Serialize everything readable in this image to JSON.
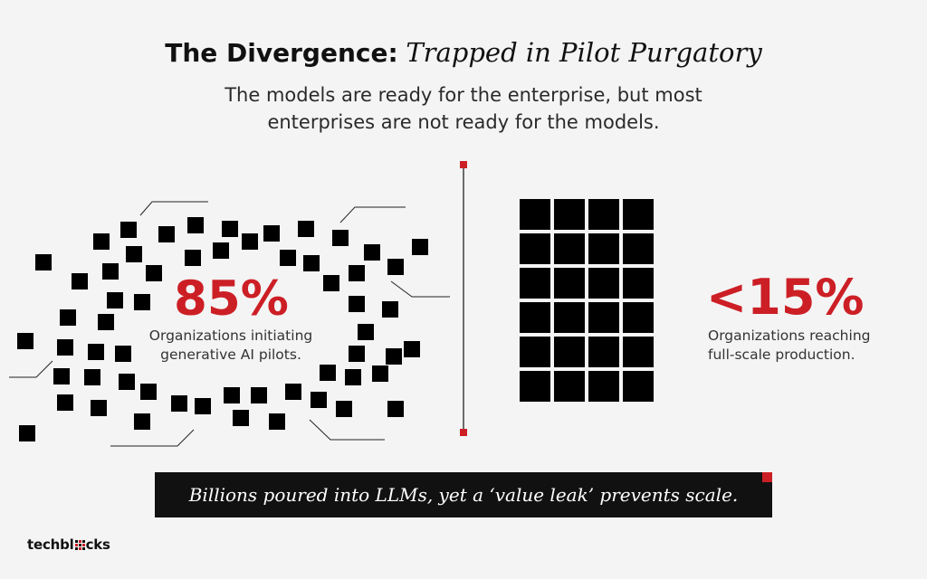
{
  "title": {
    "bold": "The Divergence:",
    "italic": "Trapped in Pilot Purgatory"
  },
  "subtitle": "The models are ready for the enterprise, but most enterprises are not ready for the models.",
  "left_stat": {
    "value": "85%",
    "caption_line1": "Organizations initiating",
    "caption_line2": "generative AI pilots."
  },
  "right_stat": {
    "value": "<15%",
    "caption_line1": "Organizations reaching",
    "caption_line2": "full-scale production."
  },
  "banner": "Billions poured into LLMs, yet a ‘value leak’ prevents scale.",
  "logo": {
    "text_start": "techbl",
    "text_end": "cks"
  },
  "colors": {
    "accent": "#cc1f25",
    "dark": "#111111",
    "background": "#f4f4f4"
  }
}
